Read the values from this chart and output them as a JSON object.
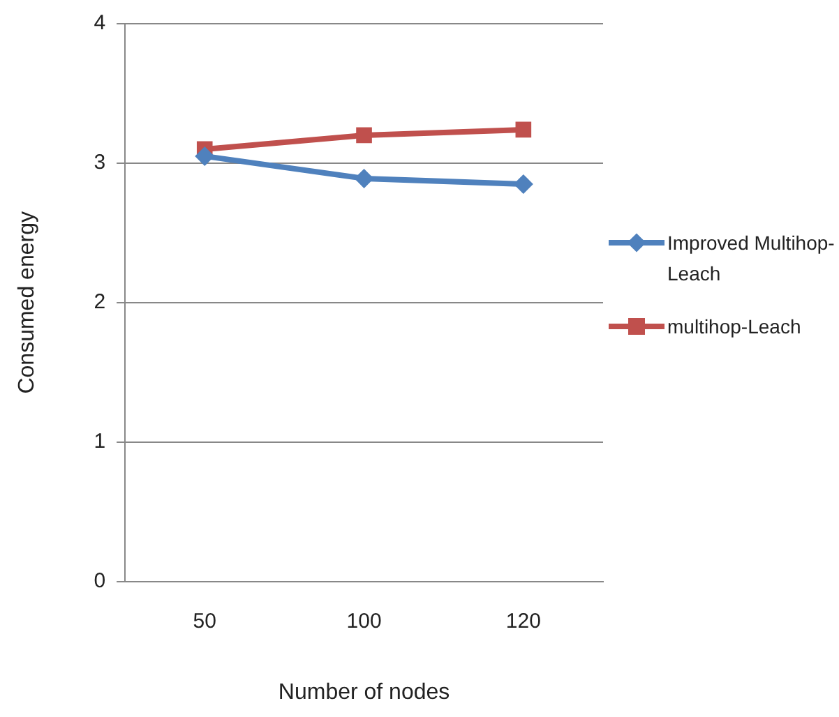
{
  "chart_data": {
    "type": "line",
    "xlabel": "Number of nodes",
    "ylabel": "Consumed energy",
    "categories": [
      "50",
      "100",
      "120"
    ],
    "series": [
      {
        "name": "Improved Multihop-Leach",
        "color": "#4f81bd",
        "marker": "diamond",
        "values": [
          3.05,
          2.89,
          2.85
        ]
      },
      {
        "name": "multihop-Leach",
        "color": "#c0504d",
        "marker": "square",
        "values": [
          3.1,
          3.2,
          3.24
        ]
      }
    ],
    "ylim": [
      0,
      4
    ],
    "yticks": [
      0,
      1,
      2,
      3,
      4
    ],
    "grid": "y",
    "legend": "right"
  }
}
